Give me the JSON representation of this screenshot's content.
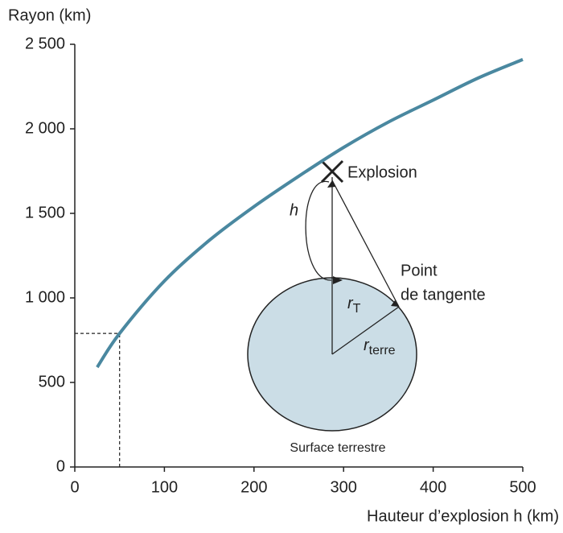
{
  "chart_data": {
    "type": "line",
    "y_label": "Rayon (km)",
    "x_label": "Hauteur d’explosion h (km)",
    "x": [
      25,
      50,
      100,
      150,
      200,
      250,
      300,
      350,
      400,
      450,
      500
    ],
    "values": [
      590,
      790,
      1100,
      1340,
      1540,
      1720,
      1890,
      2040,
      2170,
      2300,
      2410
    ],
    "color": "#4a88a0",
    "xlim": [
      0,
      500
    ],
    "xticks": [
      0,
      100,
      200,
      300,
      400,
      500
    ],
    "ylim": [
      0,
      2500
    ],
    "yticks": [
      0,
      500,
      {
        "value": 1000,
        "label": "1 000"
      },
      {
        "value": 1500,
        "label": "1 500"
      },
      {
        "value": 2000,
        "label": "2 000"
      },
      {
        "value": 2500,
        "label": "2 500"
      }
    ],
    "reference_point": {
      "x": 50,
      "y": 790
    },
    "annotations": {
      "explosion": "Explosion",
      "h": "h",
      "tangent_point": [
        "Point",
        "de tangente"
      ],
      "r_t": {
        "base": "r",
        "sub": "T"
      },
      "r_earth": {
        "base": "r",
        "sub": "terre"
      },
      "surface": "Surface terrestre"
    }
  }
}
